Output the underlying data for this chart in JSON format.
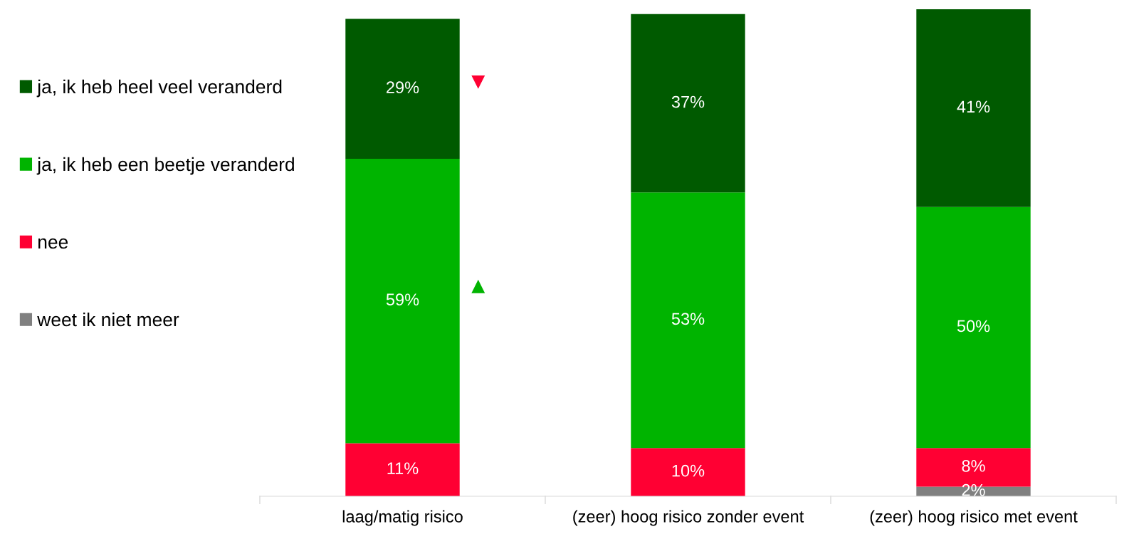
{
  "chart_data": {
    "type": "bar",
    "stacked": true,
    "legend": "left",
    "tick_labels": "x",
    "categories": [
      "laag/matig risico",
      "(zeer) hoog risico zonder event",
      "(zeer) hoog risico met event"
    ],
    "series": [
      {
        "name": "weet ik niet meer",
        "color": "#808080",
        "values": [
          null,
          null,
          2
        ],
        "value_labels": [
          null,
          null,
          "2%"
        ]
      },
      {
        "name": "nee",
        "color": "#ff0033",
        "values": [
          11,
          10,
          8
        ],
        "value_labels": [
          "11%",
          "10%",
          "8%"
        ]
      },
      {
        "name": "ja, ik heb een beetje veranderd",
        "color": "#00b400",
        "values": [
          59,
          53,
          50
        ],
        "value_labels": [
          "59%",
          "53%",
          "50%"
        ]
      },
      {
        "name": "ja, ik heb heel veel veranderd",
        "color": "#005a00",
        "values": [
          29,
          37,
          41
        ],
        "value_labels": [
          "29%",
          "37%",
          "41%"
        ]
      }
    ]
  }
}
